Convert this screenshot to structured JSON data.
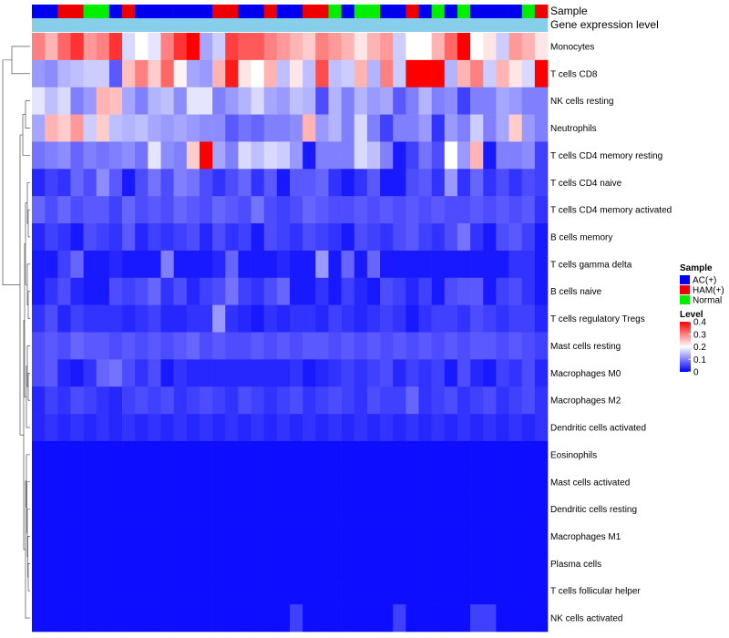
{
  "chart_data": {
    "type": "heatmap",
    "title": "",
    "annotation_labels": {
      "sample": "Sample",
      "gene_expression": "Gene expression level"
    },
    "rows": [
      "Monocytes",
      "T cells CD8",
      "NK cells resting",
      "Neutrophils",
      "T cells CD4 memory resting",
      "T cells CD4 naive",
      "T cells CD4 memory activated",
      "B cells memory",
      "T cells gamma delta",
      "B cells naive",
      "T cells regulatory  Tregs",
      "Mast cells resting",
      "Macrophages M0",
      "Macrophages M2",
      "Dendritic cells activated",
      "Eosinophils",
      "Mast cells activated",
      "Dendritic cells resting",
      "Macrophages M1",
      "Plasma cells",
      "T cells follicular helper",
      "NK cells activated"
    ],
    "sample_groups": [
      "AC",
      "AC",
      "HAM",
      "HAM",
      "Normal",
      "Normal",
      "AC",
      "HAM",
      "AC",
      "AC",
      "AC",
      "AC",
      "AC",
      "AC",
      "HAM",
      "HAM",
      "AC",
      "AC",
      "HAM",
      "AC",
      "AC",
      "HAM",
      "HAM",
      "Normal",
      "AC",
      "Normal",
      "Normal",
      "AC",
      "AC",
      "HAM",
      "AC",
      "Normal",
      "AC",
      "Normal",
      "AC",
      "AC",
      "AC",
      "AC",
      "Normal",
      "HAM"
    ],
    "values": [
      [
        0.3,
        0.26,
        0.32,
        0.36,
        0.28,
        0.3,
        0.36,
        0.17,
        0.2,
        0.18,
        0.3,
        0.36,
        0.4,
        0.13,
        0.16,
        0.35,
        0.33,
        0.33,
        0.3,
        0.28,
        0.26,
        0.24,
        0.3,
        0.28,
        0.26,
        0.22,
        0.26,
        0.28,
        0.16,
        0.2,
        0.2,
        0.26,
        0.32,
        0.4,
        0.2,
        0.22,
        0.16,
        0.28,
        0.26,
        0.22
      ],
      [
        0.12,
        0.11,
        0.14,
        0.15,
        0.16,
        0.16,
        0.07,
        0.25,
        0.3,
        0.24,
        0.32,
        0.21,
        0.13,
        0.12,
        0.26,
        0.38,
        0.22,
        0.2,
        0.26,
        0.15,
        0.22,
        0.15,
        0.34,
        0.15,
        0.16,
        0.26,
        0.14,
        0.3,
        0.16,
        0.4,
        0.4,
        0.4,
        0.14,
        0.26,
        0.3,
        0.16,
        0.26,
        0.22,
        0.17,
        0.4
      ],
      [
        0.18,
        0.15,
        0.17,
        0.1,
        0.12,
        0.26,
        0.25,
        0.13,
        0.1,
        0.14,
        0.15,
        0.11,
        0.18,
        0.18,
        0.1,
        0.12,
        0.14,
        0.17,
        0.13,
        0.12,
        0.15,
        0.14,
        0.06,
        0.14,
        0.1,
        0.14,
        0.12,
        0.13,
        0.07,
        0.1,
        0.14,
        0.1,
        0.11,
        0.05,
        0.1,
        0.1,
        0.13,
        0.12,
        0.1,
        0.1
      ],
      [
        0.13,
        0.26,
        0.24,
        0.28,
        0.16,
        0.24,
        0.15,
        0.14,
        0.15,
        0.13,
        0.12,
        0.13,
        0.12,
        0.11,
        0.11,
        0.07,
        0.09,
        0.08,
        0.1,
        0.1,
        0.11,
        0.26,
        0.12,
        0.14,
        0.1,
        0.17,
        0.1,
        0.05,
        0.1,
        0.1,
        0.12,
        0.04,
        0.12,
        0.1,
        0.16,
        0.1,
        0.13,
        0.24,
        0.12,
        0.1
      ],
      [
        0.09,
        0.1,
        0.11,
        0.08,
        0.1,
        0.09,
        0.1,
        0.11,
        0.09,
        0.18,
        0.11,
        0.1,
        0.24,
        0.4,
        0.13,
        0.1,
        0.17,
        0.15,
        0.17,
        0.16,
        0.12,
        0.02,
        0.1,
        0.1,
        0.1,
        0.17,
        0.15,
        0.1,
        0.02,
        0.05,
        0.09,
        0.06,
        0.2,
        0.12,
        0.26,
        0.02,
        0.1,
        0.1,
        0.11,
        0.05
      ],
      [
        0.03,
        0.05,
        0.04,
        0.08,
        0.06,
        0.11,
        0.07,
        0.02,
        0.06,
        0.09,
        0.06,
        0.1,
        0.09,
        0.06,
        0.04,
        0.06,
        0.08,
        0.04,
        0.07,
        0.02,
        0.07,
        0.07,
        0.08,
        0.04,
        0.02,
        0.04,
        0.07,
        0.02,
        0.02,
        0.06,
        0.07,
        0.04,
        0.12,
        0.04,
        0.08,
        0.04,
        0.06,
        0.04,
        0.06,
        0.05
      ],
      [
        0.08,
        0.06,
        0.08,
        0.06,
        0.07,
        0.07,
        0.05,
        0.08,
        0.06,
        0.07,
        0.06,
        0.08,
        0.07,
        0.06,
        0.08,
        0.07,
        0.06,
        0.09,
        0.06,
        0.05,
        0.06,
        0.08,
        0.07,
        0.06,
        0.06,
        0.07,
        0.06,
        0.07,
        0.06,
        0.07,
        0.06,
        0.07,
        0.06,
        0.06,
        0.07,
        0.06,
        0.07,
        0.06,
        0.07,
        0.04
      ],
      [
        0.03,
        0.05,
        0.04,
        0.02,
        0.06,
        0.05,
        0.04,
        0.07,
        0.03,
        0.05,
        0.04,
        0.05,
        0.06,
        0.03,
        0.06,
        0.04,
        0.05,
        0.02,
        0.06,
        0.05,
        0.04,
        0.06,
        0.05,
        0.04,
        0.02,
        0.06,
        0.05,
        0.04,
        0.06,
        0.07,
        0.05,
        0.04,
        0.06,
        0.09,
        0.04,
        0.02,
        0.06,
        0.07,
        0.05,
        0.02
      ],
      [
        0.02,
        0.02,
        0.05,
        0.08,
        0.02,
        0.02,
        0.03,
        0.02,
        0.02,
        0.02,
        0.1,
        0.02,
        0.02,
        0.02,
        0.03,
        0.08,
        0.02,
        0.02,
        0.02,
        0.03,
        0.02,
        0.02,
        0.12,
        0.02,
        0.08,
        0.02,
        0.08,
        0.02,
        0.02,
        0.02,
        0.02,
        0.02,
        0.02,
        0.02,
        0.02,
        0.02,
        0.02,
        0.04,
        0.04,
        0.02
      ],
      [
        0.02,
        0.04,
        0.06,
        0.03,
        0.02,
        0.02,
        0.06,
        0.05,
        0.06,
        0.08,
        0.04,
        0.06,
        0.03,
        0.05,
        0.06,
        0.09,
        0.05,
        0.04,
        0.06,
        0.08,
        0.02,
        0.02,
        0.04,
        0.02,
        0.05,
        0.03,
        0.02,
        0.06,
        0.05,
        0.03,
        0.05,
        0.02,
        0.06,
        0.07,
        0.07,
        0.02,
        0.05,
        0.06,
        0.04,
        0.02
      ],
      [
        0.04,
        0.06,
        0.03,
        0.05,
        0.04,
        0.04,
        0.04,
        0.03,
        0.04,
        0.05,
        0.03,
        0.03,
        0.04,
        0.04,
        0.12,
        0.04,
        0.03,
        0.02,
        0.04,
        0.03,
        0.04,
        0.04,
        0.03,
        0.05,
        0.04,
        0.03,
        0.04,
        0.05,
        0.04,
        0.02,
        0.04,
        0.05,
        0.05,
        0.04,
        0.06,
        0.05,
        0.04,
        0.05,
        0.05,
        0.03
      ],
      [
        0.06,
        0.07,
        0.06,
        0.08,
        0.07,
        0.07,
        0.06,
        0.07,
        0.06,
        0.07,
        0.06,
        0.07,
        0.08,
        0.06,
        0.07,
        0.06,
        0.06,
        0.07,
        0.06,
        0.07,
        0.06,
        0.07,
        0.07,
        0.06,
        0.07,
        0.06,
        0.07,
        0.06,
        0.07,
        0.06,
        0.07,
        0.06,
        0.07,
        0.06,
        0.07,
        0.07,
        0.06,
        0.07,
        0.06,
        0.05
      ],
      [
        0.06,
        0.07,
        0.03,
        0.02,
        0.04,
        0.08,
        0.09,
        0.06,
        0.04,
        0.06,
        0.02,
        0.04,
        0.03,
        0.03,
        0.03,
        0.03,
        0.03,
        0.03,
        0.03,
        0.03,
        0.04,
        0.02,
        0.03,
        0.04,
        0.05,
        0.04,
        0.05,
        0.06,
        0.03,
        0.05,
        0.04,
        0.05,
        0.02,
        0.06,
        0.03,
        0.02,
        0.05,
        0.04,
        0.06,
        0.03
      ],
      [
        0.03,
        0.05,
        0.04,
        0.06,
        0.05,
        0.04,
        0.03,
        0.05,
        0.06,
        0.05,
        0.06,
        0.04,
        0.05,
        0.06,
        0.05,
        0.04,
        0.06,
        0.05,
        0.04,
        0.05,
        0.06,
        0.04,
        0.05,
        0.06,
        0.05,
        0.04,
        0.06,
        0.05,
        0.05,
        0.08,
        0.04,
        0.05,
        0.06,
        0.04,
        0.05,
        0.06,
        0.04,
        0.05,
        0.06,
        0.04
      ],
      [
        0.03,
        0.04,
        0.03,
        0.04,
        0.03,
        0.04,
        0.03,
        0.04,
        0.03,
        0.04,
        0.03,
        0.04,
        0.03,
        0.04,
        0.03,
        0.04,
        0.03,
        0.04,
        0.03,
        0.04,
        0.03,
        0.04,
        0.03,
        0.04,
        0.03,
        0.04,
        0.03,
        0.04,
        0.03,
        0.04,
        0.03,
        0.04,
        0.03,
        0.04,
        0.03,
        0.04,
        0.03,
        0.04,
        0.03,
        0.04
      ],
      [
        0.01,
        0.01,
        0.01,
        0.01,
        0.01,
        0.01,
        0.01,
        0.01,
        0.01,
        0.01,
        0.01,
        0.01,
        0.01,
        0.01,
        0.01,
        0.01,
        0.01,
        0.01,
        0.01,
        0.01,
        0.01,
        0.01,
        0.01,
        0.01,
        0.01,
        0.01,
        0.01,
        0.01,
        0.01,
        0.01,
        0.01,
        0.01,
        0.01,
        0.01,
        0.01,
        0.01,
        0.01,
        0.01,
        0.01,
        0.01
      ],
      [
        0.01,
        0.01,
        0.01,
        0.01,
        0.01,
        0.01,
        0.01,
        0.01,
        0.01,
        0.01,
        0.01,
        0.01,
        0.01,
        0.01,
        0.01,
        0.01,
        0.01,
        0.01,
        0.01,
        0.01,
        0.01,
        0.01,
        0.01,
        0.01,
        0.01,
        0.01,
        0.01,
        0.01,
        0.01,
        0.01,
        0.01,
        0.01,
        0.01,
        0.01,
        0.01,
        0.01,
        0.01,
        0.01,
        0.01,
        0.01
      ],
      [
        0.01,
        0.01,
        0.01,
        0.01,
        0.01,
        0.01,
        0.01,
        0.01,
        0.01,
        0.01,
        0.01,
        0.01,
        0.01,
        0.01,
        0.01,
        0.01,
        0.01,
        0.01,
        0.01,
        0.01,
        0.01,
        0.01,
        0.01,
        0.01,
        0.01,
        0.01,
        0.01,
        0.01,
        0.01,
        0.01,
        0.01,
        0.01,
        0.01,
        0.01,
        0.01,
        0.01,
        0.01,
        0.01,
        0.01,
        0.01
      ],
      [
        0.01,
        0.01,
        0.01,
        0.01,
        0.01,
        0.01,
        0.01,
        0.01,
        0.01,
        0.01,
        0.01,
        0.01,
        0.01,
        0.01,
        0.01,
        0.01,
        0.01,
        0.01,
        0.01,
        0.01,
        0.01,
        0.01,
        0.01,
        0.01,
        0.01,
        0.01,
        0.01,
        0.01,
        0.01,
        0.01,
        0.01,
        0.01,
        0.01,
        0.01,
        0.01,
        0.01,
        0.01,
        0.01,
        0.01,
        0.01
      ],
      [
        0.01,
        0.01,
        0.01,
        0.01,
        0.01,
        0.01,
        0.01,
        0.01,
        0.01,
        0.01,
        0.01,
        0.01,
        0.01,
        0.01,
        0.01,
        0.01,
        0.01,
        0.01,
        0.01,
        0.01,
        0.01,
        0.01,
        0.01,
        0.01,
        0.01,
        0.01,
        0.01,
        0.01,
        0.01,
        0.01,
        0.01,
        0.01,
        0.01,
        0.01,
        0.01,
        0.01,
        0.01,
        0.01,
        0.01,
        0.01
      ],
      [
        0.01,
        0.01,
        0.01,
        0.01,
        0.01,
        0.01,
        0.01,
        0.01,
        0.01,
        0.01,
        0.01,
        0.01,
        0.01,
        0.01,
        0.01,
        0.01,
        0.01,
        0.01,
        0.01,
        0.01,
        0.01,
        0.01,
        0.01,
        0.01,
        0.01,
        0.01,
        0.01,
        0.01,
        0.01,
        0.01,
        0.01,
        0.01,
        0.01,
        0.01,
        0.01,
        0.01,
        0.01,
        0.01,
        0.01,
        0.01
      ],
      [
        0.01,
        0.01,
        0.01,
        0.01,
        0.01,
        0.01,
        0.01,
        0.01,
        0.01,
        0.01,
        0.01,
        0.01,
        0.01,
        0.01,
        0.01,
        0.01,
        0.01,
        0.01,
        0.01,
        0.01,
        0.05,
        0.01,
        0.01,
        0.01,
        0.01,
        0.01,
        0.01,
        0.01,
        0.05,
        0.01,
        0.01,
        0.01,
        0.01,
        0.01,
        0.05,
        0.05,
        0.01,
        0.01,
        0.01,
        0.01
      ]
    ],
    "legend": {
      "sample_title": "Sample",
      "sample_entries": [
        {
          "label": "AC(+)",
          "group": "AC",
          "color": "#0000ee"
        },
        {
          "label": "HAM(+)",
          "group": "HAM",
          "color": "#ee0000"
        },
        {
          "label": "Normal",
          "group": "Normal",
          "color": "#00ee00"
        }
      ],
      "level_title": "Level",
      "level_ticks": [
        "0.4",
        "0.3",
        "0.2",
        "0.1",
        "0"
      ],
      "level_tick_values": [
        0.4,
        0.3,
        0.2,
        0.1,
        0.0
      ],
      "position": "right"
    },
    "color_scale": {
      "low": "#0000ff",
      "mid": "#ffffff",
      "high": "#ff0000",
      "min": 0,
      "mid_value": 0.2,
      "max": 0.4
    },
    "gene_expression_color": "#87ceeb",
    "cell_border_color": "#ffffff"
  }
}
